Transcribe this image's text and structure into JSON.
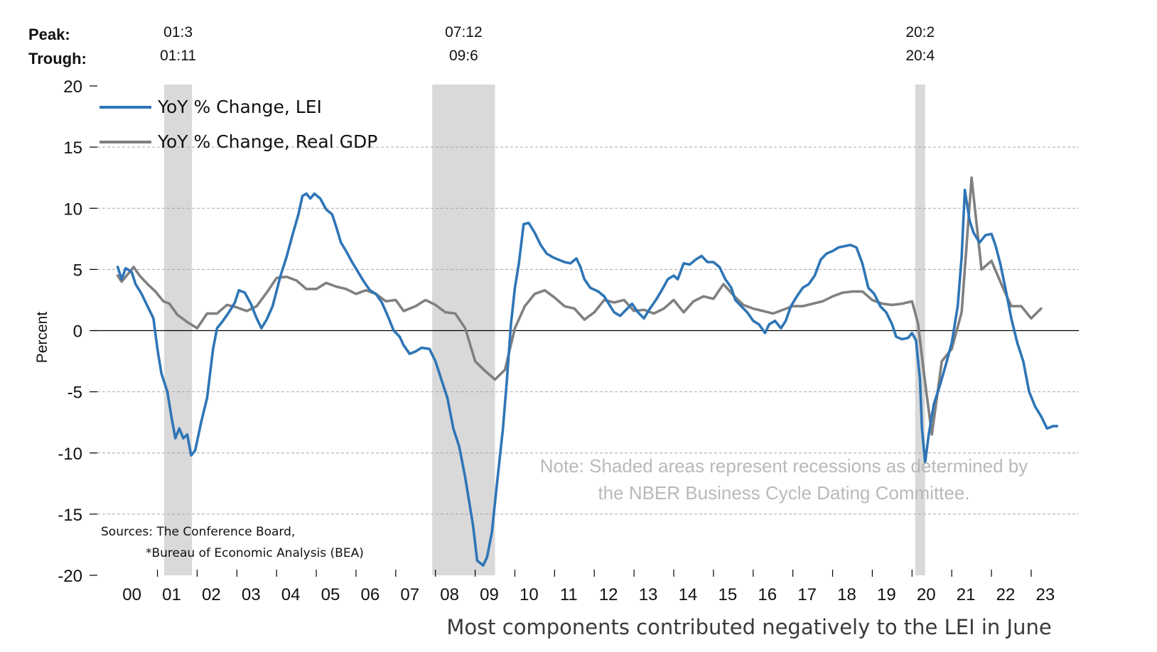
{
  "chart_data": {
    "type": "line",
    "ylabel": "Percent",
    "ylim": [
      -20,
      20
    ],
    "yticks": [
      20,
      15,
      10,
      5,
      0,
      -5,
      -10,
      -15,
      -20
    ],
    "ytick_labels": [
      "20",
      "15",
      "10",
      "5",
      "0",
      "-5",
      "-10",
      "-15",
      "-20"
    ],
    "xlim": [
      2000.0,
      2023.9
    ],
    "x_tick_labels": [
      "00",
      "01",
      "02",
      "03",
      "04",
      "05",
      "06",
      "07",
      "08",
      "09",
      "10",
      "11",
      "12",
      "13",
      "14",
      "15",
      "16",
      "17",
      "18",
      "19",
      "20",
      "21",
      "22",
      "23"
    ],
    "grid": true,
    "legend_position": "top-left",
    "peak_label": "Peak:",
    "trough_label": "Trough:",
    "recessions": [
      {
        "peak": "01:3",
        "trough": "01:11",
        "start": 2001.17,
        "end": 2001.87
      },
      {
        "peak": "07:12",
        "trough": "09:6",
        "start": 2007.92,
        "end": 2009.5
      },
      {
        "peak": "20:2",
        "trough": "20:4",
        "start": 2020.08,
        "end": 2020.33
      }
    ],
    "series": [
      {
        "name": "YoY % Change, LEI",
        "color": "#2e75b6",
        "points": [
          [
            2000.0,
            5.2
          ],
          [
            2000.1,
            4.2
          ],
          [
            2000.2,
            5.1
          ],
          [
            2000.35,
            4.8
          ],
          [
            2000.45,
            3.8
          ],
          [
            2000.6,
            3.0
          ],
          [
            2000.75,
            2.0
          ],
          [
            2000.9,
            1.0
          ],
          [
            2001.0,
            -1.5
          ],
          [
            2001.1,
            -3.5
          ],
          [
            2001.25,
            -5.0
          ],
          [
            2001.35,
            -7.0
          ],
          [
            2001.45,
            -8.8
          ],
          [
            2001.55,
            -8.0
          ],
          [
            2001.65,
            -8.8
          ],
          [
            2001.75,
            -8.5
          ],
          [
            2001.85,
            -10.2
          ],
          [
            2001.95,
            -9.8
          ],
          [
            2002.1,
            -7.5
          ],
          [
            2002.25,
            -5.5
          ],
          [
            2002.4,
            -1.5
          ],
          [
            2002.5,
            0.2
          ],
          [
            2002.65,
            0.8
          ],
          [
            2002.8,
            1.5
          ],
          [
            2002.95,
            2.3
          ],
          [
            2003.05,
            3.3
          ],
          [
            2003.2,
            3.1
          ],
          [
            2003.35,
            2.2
          ],
          [
            2003.5,
            1.0
          ],
          [
            2003.62,
            0.2
          ],
          [
            2003.75,
            0.9
          ],
          [
            2003.9,
            2.0
          ],
          [
            2004.1,
            4.5
          ],
          [
            2004.25,
            6.0
          ],
          [
            2004.4,
            7.8
          ],
          [
            2004.55,
            9.5
          ],
          [
            2004.65,
            11.0
          ],
          [
            2004.75,
            11.2
          ],
          [
            2004.85,
            10.8
          ],
          [
            2004.95,
            11.2
          ],
          [
            2005.1,
            10.8
          ],
          [
            2005.25,
            9.9
          ],
          [
            2005.4,
            9.5
          ],
          [
            2005.5,
            8.5
          ],
          [
            2005.62,
            7.2
          ],
          [
            2005.75,
            6.5
          ],
          [
            2005.9,
            5.6
          ],
          [
            2006.05,
            4.8
          ],
          [
            2006.2,
            4.0
          ],
          [
            2006.35,
            3.3
          ],
          [
            2006.5,
            3.0
          ],
          [
            2006.65,
            2.3
          ],
          [
            2006.8,
            1.2
          ],
          [
            2006.95,
            0.0
          ],
          [
            2007.1,
            -0.5
          ],
          [
            2007.2,
            -1.2
          ],
          [
            2007.35,
            -1.9
          ],
          [
            2007.5,
            -1.7
          ],
          [
            2007.65,
            -1.4
          ],
          [
            2007.85,
            -1.5
          ],
          [
            2008.0,
            -2.5
          ],
          [
            2008.15,
            -4.0
          ],
          [
            2008.3,
            -5.5
          ],
          [
            2008.45,
            -8.0
          ],
          [
            2008.6,
            -9.5
          ],
          [
            2008.75,
            -12.0
          ],
          [
            2008.85,
            -14.0
          ],
          [
            2008.95,
            -16.0
          ],
          [
            2009.05,
            -18.8
          ],
          [
            2009.2,
            -19.2
          ],
          [
            2009.3,
            -18.5
          ],
          [
            2009.42,
            -16.5
          ],
          [
            2009.55,
            -12.5
          ],
          [
            2009.7,
            -8.0
          ],
          [
            2009.8,
            -4.0
          ],
          [
            2009.9,
            0.5
          ],
          [
            2010.0,
            3.5
          ],
          [
            2010.1,
            5.5
          ],
          [
            2010.22,
            8.7
          ],
          [
            2010.35,
            8.8
          ],
          [
            2010.5,
            8.0
          ],
          [
            2010.65,
            7.0
          ],
          [
            2010.8,
            6.3
          ],
          [
            2010.95,
            6.0
          ],
          [
            2011.1,
            5.8
          ],
          [
            2011.25,
            5.6
          ],
          [
            2011.4,
            5.5
          ],
          [
            2011.55,
            5.9
          ],
          [
            2011.65,
            5.2
          ],
          [
            2011.75,
            4.2
          ],
          [
            2011.9,
            3.5
          ],
          [
            2012.1,
            3.2
          ],
          [
            2012.25,
            2.8
          ],
          [
            2012.4,
            2.0
          ],
          [
            2012.5,
            1.5
          ],
          [
            2012.65,
            1.2
          ],
          [
            2012.8,
            1.7
          ],
          [
            2012.95,
            2.2
          ],
          [
            2013.1,
            1.5
          ],
          [
            2013.25,
            1.0
          ],
          [
            2013.4,
            1.8
          ],
          [
            2013.55,
            2.5
          ],
          [
            2013.7,
            3.3
          ],
          [
            2013.85,
            4.2
          ],
          [
            2014.0,
            4.5
          ],
          [
            2014.1,
            4.2
          ],
          [
            2014.25,
            5.5
          ],
          [
            2014.4,
            5.4
          ],
          [
            2014.55,
            5.8
          ],
          [
            2014.7,
            6.1
          ],
          [
            2014.85,
            5.6
          ],
          [
            2015.0,
            5.6
          ],
          [
            2015.15,
            5.2
          ],
          [
            2015.3,
            4.2
          ],
          [
            2015.45,
            3.5
          ],
          [
            2015.55,
            2.5
          ],
          [
            2015.7,
            2.0
          ],
          [
            2015.85,
            1.5
          ],
          [
            2016.0,
            0.8
          ],
          [
            2016.15,
            0.5
          ],
          [
            2016.3,
            -0.2
          ],
          [
            2016.4,
            0.5
          ],
          [
            2016.55,
            0.8
          ],
          [
            2016.7,
            0.2
          ],
          [
            2016.82,
            0.8
          ],
          [
            2016.95,
            2.0
          ],
          [
            2017.1,
            2.8
          ],
          [
            2017.25,
            3.5
          ],
          [
            2017.4,
            3.8
          ],
          [
            2017.55,
            4.5
          ],
          [
            2017.7,
            5.8
          ],
          [
            2017.85,
            6.3
          ],
          [
            2018.0,
            6.5
          ],
          [
            2018.15,
            6.8
          ],
          [
            2018.3,
            6.9
          ],
          [
            2018.45,
            7.0
          ],
          [
            2018.6,
            6.8
          ],
          [
            2018.75,
            5.5
          ],
          [
            2018.9,
            3.5
          ],
          [
            2019.05,
            3.0
          ],
          [
            2019.2,
            2.0
          ],
          [
            2019.35,
            1.5
          ],
          [
            2019.5,
            0.5
          ],
          [
            2019.6,
            -0.5
          ],
          [
            2019.75,
            -0.7
          ],
          [
            2019.9,
            -0.6
          ],
          [
            2020.0,
            -0.2
          ],
          [
            2020.1,
            -0.8
          ],
          [
            2020.2,
            -4.0
          ],
          [
            2020.25,
            -8.0
          ],
          [
            2020.33,
            -10.8
          ],
          [
            2020.42,
            -8.5
          ],
          [
            2020.55,
            -6.0
          ],
          [
            2020.7,
            -4.5
          ],
          [
            2020.85,
            -2.8
          ],
          [
            2021.0,
            -1.0
          ],
          [
            2021.15,
            2.0
          ],
          [
            2021.25,
            6.0
          ],
          [
            2021.33,
            11.5
          ],
          [
            2021.45,
            9.0
          ],
          [
            2021.55,
            8.0
          ],
          [
            2021.7,
            7.2
          ],
          [
            2021.85,
            7.8
          ],
          [
            2022.0,
            7.9
          ],
          [
            2022.1,
            7.0
          ],
          [
            2022.22,
            5.5
          ],
          [
            2022.35,
            3.5
          ],
          [
            2022.5,
            1.0
          ],
          [
            2022.65,
            -1.0
          ],
          [
            2022.8,
            -2.5
          ],
          [
            2022.95,
            -5.0
          ],
          [
            2023.1,
            -6.2
          ],
          [
            2023.25,
            -7.0
          ],
          [
            2023.4,
            -8.0
          ],
          [
            2023.55,
            -7.8
          ],
          [
            2023.65,
            -7.8
          ]
        ]
      },
      {
        "name": "YoY % Change, Real GDP",
        "color": "#808080",
        "points": [
          [
            2000.0,
            4.5
          ],
          [
            2000.1,
            4.0
          ],
          [
            2000.25,
            4.6
          ],
          [
            2000.4,
            5.2
          ],
          [
            2000.55,
            4.5
          ],
          [
            2000.75,
            3.8
          ],
          [
            2000.95,
            3.2
          ],
          [
            2001.15,
            2.4
          ],
          [
            2001.3,
            2.2
          ],
          [
            2001.5,
            1.3
          ],
          [
            2001.75,
            0.7
          ],
          [
            2002.0,
            0.2
          ],
          [
            2002.25,
            1.4
          ],
          [
            2002.5,
            1.4
          ],
          [
            2002.75,
            2.1
          ],
          [
            2003.0,
            1.9
          ],
          [
            2003.25,
            1.6
          ],
          [
            2003.5,
            2.0
          ],
          [
            2003.75,
            3.1
          ],
          [
            2004.0,
            4.3
          ],
          [
            2004.25,
            4.4
          ],
          [
            2004.5,
            4.1
          ],
          [
            2004.75,
            3.4
          ],
          [
            2005.0,
            3.4
          ],
          [
            2005.25,
            3.9
          ],
          [
            2005.5,
            3.6
          ],
          [
            2005.75,
            3.4
          ],
          [
            2006.0,
            3.0
          ],
          [
            2006.25,
            3.3
          ],
          [
            2006.5,
            3.0
          ],
          [
            2006.75,
            2.4
          ],
          [
            2007.0,
            2.5
          ],
          [
            2007.2,
            1.6
          ],
          [
            2007.5,
            2.0
          ],
          [
            2007.75,
            2.5
          ],
          [
            2008.0,
            2.1
          ],
          [
            2008.25,
            1.5
          ],
          [
            2008.5,
            1.4
          ],
          [
            2008.75,
            0.2
          ],
          [
            2009.0,
            -2.5
          ],
          [
            2009.25,
            -3.3
          ],
          [
            2009.5,
            -4.0
          ],
          [
            2009.75,
            -3.2
          ],
          [
            2010.0,
            0.2
          ],
          [
            2010.25,
            2.0
          ],
          [
            2010.5,
            3.0
          ],
          [
            2010.75,
            3.3
          ],
          [
            2011.0,
            2.7
          ],
          [
            2011.25,
            2.0
          ],
          [
            2011.5,
            1.8
          ],
          [
            2011.75,
            0.9
          ],
          [
            2012.0,
            1.5
          ],
          [
            2012.25,
            2.5
          ],
          [
            2012.5,
            2.3
          ],
          [
            2012.75,
            2.5
          ],
          [
            2013.0,
            1.6
          ],
          [
            2013.25,
            1.7
          ],
          [
            2013.5,
            1.4
          ],
          [
            2013.75,
            1.8
          ],
          [
            2014.0,
            2.5
          ],
          [
            2014.25,
            1.5
          ],
          [
            2014.5,
            2.4
          ],
          [
            2014.75,
            2.8
          ],
          [
            2015.0,
            2.6
          ],
          [
            2015.25,
            3.8
          ],
          [
            2015.5,
            2.9
          ],
          [
            2015.75,
            2.1
          ],
          [
            2016.0,
            1.8
          ],
          [
            2016.25,
            1.6
          ],
          [
            2016.5,
            1.4
          ],
          [
            2016.75,
            1.7
          ],
          [
            2017.0,
            2.0
          ],
          [
            2017.25,
            2.0
          ],
          [
            2017.5,
            2.2
          ],
          [
            2017.75,
            2.4
          ],
          [
            2018.0,
            2.8
          ],
          [
            2018.25,
            3.1
          ],
          [
            2018.5,
            3.2
          ],
          [
            2018.75,
            3.2
          ],
          [
            2019.0,
            2.5
          ],
          [
            2019.25,
            2.2
          ],
          [
            2019.5,
            2.1
          ],
          [
            2019.75,
            2.2
          ],
          [
            2020.0,
            2.4
          ],
          [
            2020.15,
            0.6
          ],
          [
            2020.3,
            -3.5
          ],
          [
            2020.5,
            -8.5
          ],
          [
            2020.75,
            -2.5
          ],
          [
            2021.0,
            -1.5
          ],
          [
            2021.25,
            1.5
          ],
          [
            2021.5,
            12.5
          ],
          [
            2021.75,
            5.0
          ],
          [
            2022.0,
            5.7
          ],
          [
            2022.25,
            3.8
          ],
          [
            2022.5,
            2.0
          ],
          [
            2022.75,
            2.0
          ],
          [
            2023.0,
            1.0
          ],
          [
            2023.25,
            1.8
          ]
        ]
      }
    ]
  },
  "note_lines": [
    "Note: Shaded areas represent recessions as determined by",
    "the NBER Business Cycle Dating Committee."
  ],
  "source_lines": [
    "Sources: The Conference Board,",
    "*Bureau of Economic Analysis (BEA)"
  ],
  "caption": "Most components contributed negatively to the LEI in June"
}
